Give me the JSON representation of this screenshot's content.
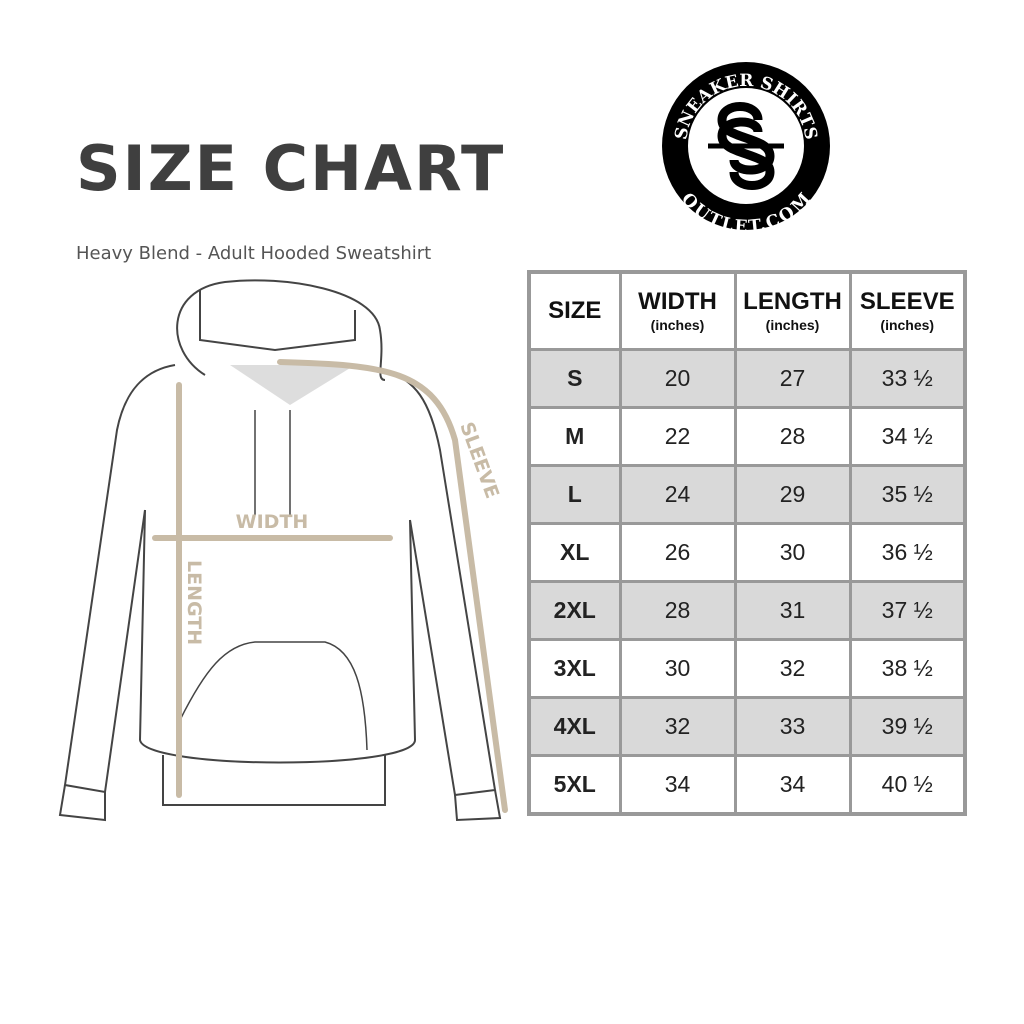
{
  "title": "SIZE CHART",
  "subtitle": "Heavy Blend - Adult Hooded Sweatshirt",
  "logo": {
    "top_text": "SNEAKER SHIRTS",
    "bottom_text": "OUTLET.COM",
    "monogram": "SS"
  },
  "diagram_labels": {
    "width": "WIDTH",
    "length": "LENGTH",
    "sleeve": "SLEEVE"
  },
  "colors": {
    "measure_line": "#c8bba6",
    "row_shade": "#d9d9d9",
    "border": "#999999",
    "title": "#3f3f3f"
  },
  "table": {
    "headers": [
      {
        "label": "SIZE",
        "unit": ""
      },
      {
        "label": "WIDTH",
        "unit": "(inches)"
      },
      {
        "label": "LENGTH",
        "unit": "(inches)"
      },
      {
        "label": "SLEEVE",
        "unit": "(inches)"
      }
    ],
    "rows": [
      [
        "S",
        "20",
        "27",
        "33 ½"
      ],
      [
        "M",
        "22",
        "28",
        "34 ½"
      ],
      [
        "L",
        "24",
        "29",
        "35 ½"
      ],
      [
        "XL",
        "26",
        "30",
        "36 ½"
      ],
      [
        "2XL",
        "28",
        "31",
        "37 ½"
      ],
      [
        "3XL",
        "30",
        "32",
        "38 ½"
      ],
      [
        "4XL",
        "32",
        "33",
        "39 ½"
      ],
      [
        "5XL",
        "34",
        "34",
        "40 ½"
      ]
    ]
  }
}
